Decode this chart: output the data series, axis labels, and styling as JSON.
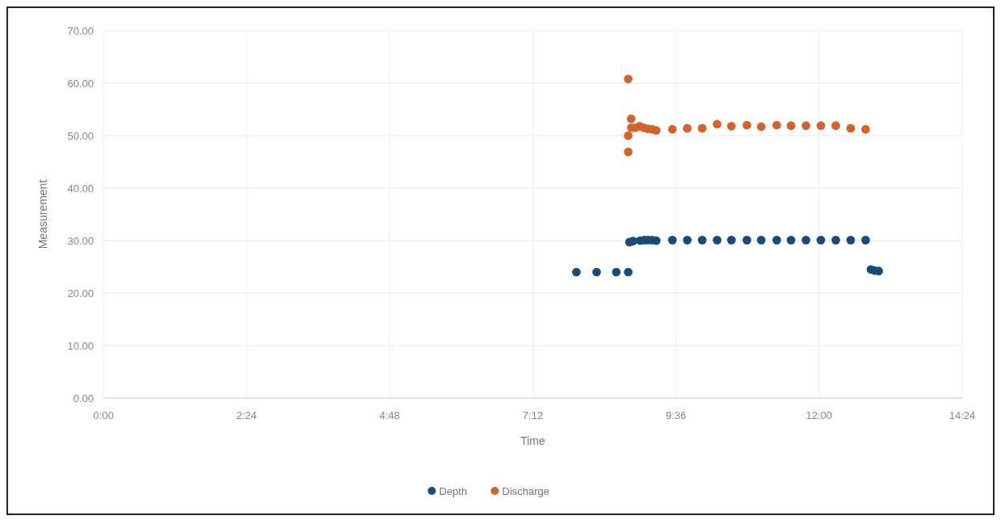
{
  "chart_data": {
    "type": "scatter",
    "xlabel": "Time",
    "ylabel": "Measurement",
    "xlim": [
      0,
      14.4
    ],
    "xticks": [
      {
        "value": 0,
        "label": "0:00"
      },
      {
        "value": 2.4,
        "label": "2:24"
      },
      {
        "value": 4.8,
        "label": "4:48"
      },
      {
        "value": 7.2,
        "label": "7:12"
      },
      {
        "value": 9.6,
        "label": "9:36"
      },
      {
        "value": 12,
        "label": "12:00"
      },
      {
        "value": 14.4,
        "label": "14:24"
      }
    ],
    "ylim": [
      0,
      70
    ],
    "yticks": [
      {
        "value": 0,
        "label": "0.00"
      },
      {
        "value": 10,
        "label": "10.00"
      },
      {
        "value": 20,
        "label": "20.00"
      },
      {
        "value": 30,
        "label": "30.00"
      },
      {
        "value": 40,
        "label": "40.00"
      },
      {
        "value": 50,
        "label": "50.00"
      },
      {
        "value": 60,
        "label": "60.00"
      },
      {
        "value": 70,
        "label": "70.00"
      }
    ],
    "grid": true,
    "legend": "bottom",
    "marker": "circle",
    "series": [
      {
        "name": "Depth",
        "color": "#1b4a7a",
        "x": [
          7.93,
          8.27,
          8.6,
          8.8,
          8.82,
          8.88,
          9.0,
          9.07,
          9.13,
          9.2,
          9.27,
          9.54,
          9.79,
          10.04,
          10.29,
          10.53,
          10.79,
          11.03,
          11.29,
          11.53,
          11.78,
          12.03,
          12.28,
          12.53,
          12.78,
          12.87,
          12.93,
          13.0
        ],
        "values": [
          24,
          24,
          24,
          24,
          29.7,
          29.9,
          30,
          30.1,
          30.1,
          30.1,
          30,
          30.1,
          30.1,
          30.1,
          30.1,
          30.1,
          30.1,
          30.1,
          30.1,
          30.1,
          30.1,
          30.1,
          30.1,
          30.1,
          30.1,
          24.5,
          24.3,
          24.2
        ]
      },
      {
        "name": "Discharge",
        "color": "#d4622a",
        "x": [
          8.8,
          8.8,
          8.8,
          8.85,
          8.85,
          8.92,
          8.99,
          9.06,
          9.13,
          9.2,
          9.27,
          9.54,
          9.79,
          10.04,
          10.29,
          10.53,
          10.79,
          11.03,
          11.29,
          11.53,
          11.78,
          12.03,
          12.28,
          12.53,
          12.78
        ],
        "values": [
          60.8,
          46.9,
          50,
          53.2,
          51.5,
          51.5,
          51.8,
          51.5,
          51.3,
          51.2,
          51,
          51.2,
          51.4,
          51.4,
          52.2,
          51.8,
          52,
          51.7,
          52,
          51.9,
          51.9,
          51.9,
          51.9,
          51.4,
          51.2
        ]
      }
    ]
  }
}
